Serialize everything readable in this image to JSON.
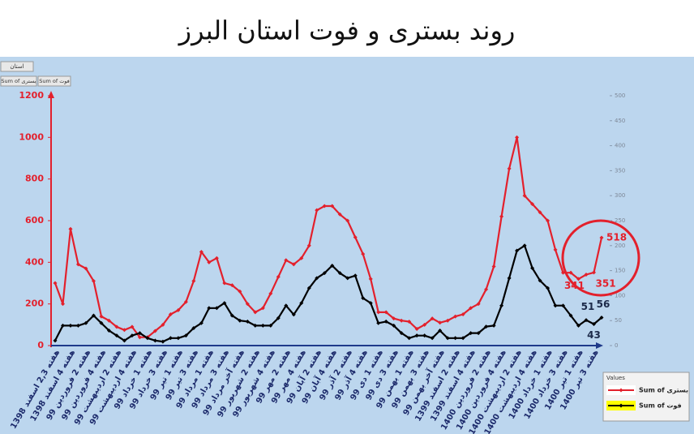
{
  "chart_data": {
    "type": "line",
    "title": "روند بستری و فوت استان البرز",
    "categories": [
      "هفته 2,3 اسفند 1398",
      null,
      "هفته 4 اسفند 1398",
      null,
      "هفته 2 فروردین 99",
      null,
      "هفته 4 فروردین 99",
      null,
      "هفته 2 اردیبهشت 99",
      null,
      "هفته 4 اردیبهشت 99",
      null,
      "هفته 1 خرداد 99",
      null,
      "هفته 3 خرداد 99",
      null,
      "هفته 1 تیر 99",
      null,
      "هفته 3 تیر 99",
      null,
      "هفته 1 مرداد 99",
      null,
      "هفته 3 مرداد 99",
      null,
      "هفته آخر مرداد 99",
      null,
      "هفته 2 شهریور 99",
      null,
      "هفته 4 شهریور 99",
      null,
      "هفته 2 مهر 99",
      null,
      "هفته 4 مهر 99",
      null,
      "هفته 2 آبان 99",
      null,
      "هفته 4 آبان 99",
      null,
      "هفته 2 آذر 99",
      null,
      "هفته 4 آذر 99",
      null,
      "هفته 1 دی 99",
      null,
      "هفته 3 دی 99",
      null,
      "هفته 1 بهمن 99",
      null,
      "هفته 3 بهمن 99",
      null,
      "هفته آخر بهمن 99",
      null,
      "هفته 2 اسفند 1399",
      null,
      "هفته 4 اسفند 1399",
      null,
      "هفته 2 فروردین 1400",
      null,
      "هفته 4 فروردین 1400",
      null,
      "هفته 2 اردیبهشت 1400",
      null,
      "هفته 4 اردیبهشت 1400",
      null,
      "هفته 1 خرداد 1400",
      null,
      "هفته 3 خرداد 1400",
      null,
      "هفته 1 تیر 1400",
      null,
      "هفته 3 تیر 1400",
      null
    ],
    "series": [
      {
        "name": "Sum of بستری",
        "color": "#e3202c",
        "values": [
          300,
          200,
          560,
          390,
          370,
          310,
          140,
          120,
          90,
          75,
          90,
          40,
          40,
          70,
          100,
          150,
          170,
          210,
          310,
          450,
          400,
          420,
          300,
          290,
          260,
          200,
          160,
          180,
          250,
          330,
          410,
          390,
          420,
          480,
          650,
          670,
          670,
          630,
          600,
          520,
          440,
          320,
          160,
          160,
          130,
          120,
          115,
          80,
          100,
          130,
          110,
          120,
          140,
          150,
          180,
          200,
          270,
          380,
          620,
          850,
          1000,
          720,
          680,
          640,
          600,
          460,
          350,
          350,
          320,
          341,
          351,
          518
        ]
      },
      {
        "name": "Sum of فوت",
        "color": "#000000",
        "axis": "y2",
        "values": [
          10,
          40,
          40,
          40,
          45,
          60,
          45,
          30,
          20,
          10,
          20,
          25,
          15,
          10,
          8,
          15,
          15,
          20,
          35,
          45,
          75,
          75,
          85,
          60,
          50,
          48,
          40,
          40,
          40,
          55,
          80,
          62,
          85,
          115,
          135,
          145,
          160,
          145,
          135,
          140,
          95,
          85,
          45,
          48,
          40,
          25,
          15,
          20,
          20,
          15,
          30,
          15,
          15,
          15,
          25,
          25,
          38,
          40,
          80,
          135,
          190,
          200,
          155,
          130,
          115,
          80,
          80,
          60,
          40,
          51,
          43,
          56
        ]
      }
    ],
    "ylim": [
      0,
      1200
    ],
    "yticks": [
      0,
      200,
      400,
      600,
      800,
      1000,
      1200
    ],
    "y2lim": [
      0,
      500
    ],
    "y2ticks": [
      0,
      50,
      100,
      150,
      200,
      250,
      300,
      350,
      400,
      450,
      500
    ],
    "legend": "bottom-right",
    "legend_title": "Values"
  },
  "controls": {
    "filter": "استان",
    "buttons": [
      "Sum of بستری",
      "Sum of فوت"
    ]
  }
}
